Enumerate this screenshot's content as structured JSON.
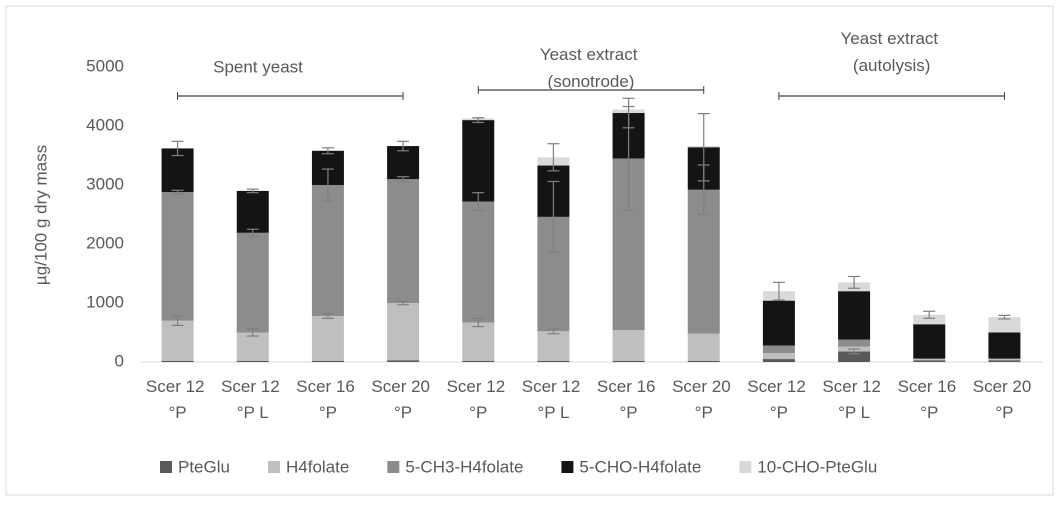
{
  "chart_data": {
    "type": "stacked-bar",
    "ylabel": "µg/100 g dry mass",
    "annotations": [
      "Spent yeast",
      "Yeast extract (sonotrode)",
      "Yeast extract (autolysis)"
    ],
    "categories": [
      "Scer 12 °P",
      "Scer 12 °P L",
      "Scer 16 °P",
      "Scer 20 °P",
      "Scer 12 °P",
      "Scer 12 °P L",
      "Scer 16 °P",
      "Scer 20 °P",
      "Scer 12 °P",
      "Scer 12 °P L",
      "Scer 16 °P",
      "Scer 20 °P"
    ],
    "series": [
      {
        "name": "PteGlu",
        "color": "#595959",
        "values": [
          20,
          20,
          20,
          30,
          20,
          20,
          20,
          20,
          50,
          180,
          30,
          30
        ],
        "errors": [
          null,
          null,
          null,
          null,
          null,
          null,
          null,
          null,
          null,
          40,
          null,
          null
        ]
      },
      {
        "name": "H4folate",
        "color": "#bfbfbf",
        "values": [
          680,
          480,
          760,
          970,
          650,
          500,
          520,
          460,
          100,
          80,
          20,
          20
        ],
        "errors": [
          80,
          60,
          40,
          30,
          70,
          40,
          null,
          null,
          null,
          null,
          null,
          null
        ]
      },
      {
        "name": "5-CH3-H4folate",
        "color": "#8c8c8c",
        "values": [
          2180,
          1690,
          2220,
          2100,
          2050,
          1940,
          2910,
          2440,
          130,
          120,
          10,
          10
        ],
        "errors": [
          30,
          60,
          270,
          40,
          150,
          600,
          880,
          420,
          null,
          null,
          null,
          null
        ]
      },
      {
        "name": "5-CHO-H4folate",
        "color": "#141414",
        "values": [
          740,
          710,
          580,
          560,
          1380,
          870,
          770,
          720,
          760,
          820,
          580,
          440
        ],
        "errors": [
          120,
          30,
          50,
          80,
          40,
          null,
          250,
          570,
          null,
          null,
          null,
          null
        ]
      },
      {
        "name": "10-CHO-PteGlu",
        "color": "#d9d9d9",
        "values": [
          0,
          0,
          0,
          0,
          30,
          140,
          60,
          20,
          160,
          150,
          160,
          260
        ],
        "errors": [
          null,
          null,
          null,
          null,
          null,
          230,
          null,
          null,
          150,
          100,
          60,
          30
        ]
      }
    ],
    "ylim": [
      0,
      5000
    ],
    "yticks": [
      0,
      1000,
      2000,
      3000,
      4000,
      5000
    ],
    "grid": false,
    "legend": "bottom"
  }
}
